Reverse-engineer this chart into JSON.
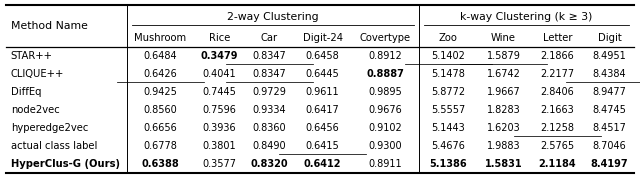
{
  "methods": [
    "STAR++",
    "CLIQUE++",
    "DiffEq",
    "node2vec",
    "hyperedge2vec",
    "actual class label",
    "HyperClus-G (Ours)"
  ],
  "data": {
    "STAR++": [
      "0.6484",
      "0.3479",
      "0.8347",
      "0.6458",
      "0.8912",
      "5.1402",
      "1.5879",
      "2.1866",
      "8.4951"
    ],
    "CLIQUE++": [
      "0.6426",
      "0.4041",
      "0.8347",
      "0.6445",
      "0.8887",
      "5.1478",
      "1.6742",
      "2.2177",
      "8.4384"
    ],
    "DiffEq": [
      "0.9425",
      "0.7445",
      "0.9729",
      "0.9611",
      "0.9895",
      "5.8772",
      "1.9667",
      "2.8406",
      "8.9477"
    ],
    "node2vec": [
      "0.8560",
      "0.7596",
      "0.9334",
      "0.6417",
      "0.9676",
      "5.5557",
      "1.8283",
      "2.1663",
      "8.4745"
    ],
    "hyperedge2vec": [
      "0.6656",
      "0.3936",
      "0.8360",
      "0.6456",
      "0.9102",
      "5.1443",
      "1.6203",
      "2.1258",
      "8.4517"
    ],
    "actual class label": [
      "0.6778",
      "0.3801",
      "0.8490",
      "0.6415",
      "0.9300",
      "5.4676",
      "1.9883",
      "2.5765",
      "8.7046"
    ],
    "HyperClus-G (Ours)": [
      "0.6388",
      "0.3577",
      "0.8320",
      "0.6412",
      "0.8911",
      "5.1386",
      "1.5831",
      "2.1184",
      "8.4197"
    ]
  },
  "bold": {
    "STAR++": [
      false,
      true,
      false,
      false,
      false,
      false,
      false,
      false,
      false
    ],
    "CLIQUE++": [
      false,
      false,
      false,
      false,
      true,
      false,
      false,
      false,
      false
    ],
    "DiffEq": [
      false,
      false,
      false,
      false,
      false,
      false,
      false,
      false,
      false
    ],
    "node2vec": [
      false,
      false,
      false,
      false,
      false,
      false,
      false,
      false,
      false
    ],
    "hyperedge2vec": [
      false,
      false,
      false,
      false,
      false,
      false,
      false,
      false,
      false
    ],
    "actual class label": [
      false,
      false,
      false,
      false,
      false,
      false,
      false,
      false,
      false
    ],
    "HyperClus-G (Ours)": [
      true,
      false,
      true,
      true,
      false,
      true,
      true,
      true,
      true
    ]
  },
  "underline": {
    "STAR++": [
      false,
      false,
      true,
      false,
      false,
      true,
      true,
      false,
      false
    ],
    "CLIQUE++": [
      true,
      false,
      true,
      false,
      false,
      false,
      false,
      false,
      true
    ],
    "DiffEq": [
      false,
      false,
      false,
      false,
      false,
      false,
      false,
      false,
      false
    ],
    "node2vec": [
      false,
      false,
      false,
      false,
      false,
      false,
      false,
      false,
      false
    ],
    "hyperedge2vec": [
      false,
      false,
      false,
      false,
      false,
      false,
      false,
      true,
      false
    ],
    "actual class label": [
      false,
      false,
      false,
      true,
      false,
      false,
      false,
      false,
      false
    ],
    "HyperClus-G (Ours)": [
      false,
      true,
      false,
      false,
      true,
      false,
      false,
      false,
      false
    ]
  },
  "col_headers": [
    "Mushroom",
    "Rice",
    "Car",
    "Digit-24",
    "Covertype",
    "Zoo",
    "Wine",
    "Letter",
    "Digit"
  ],
  "group1_label": "2-way Clustering",
  "group2_label": "k-way Clustering (k ≥ 3)",
  "method_col_label": "Method Name",
  "bg_color": "#ffffff"
}
